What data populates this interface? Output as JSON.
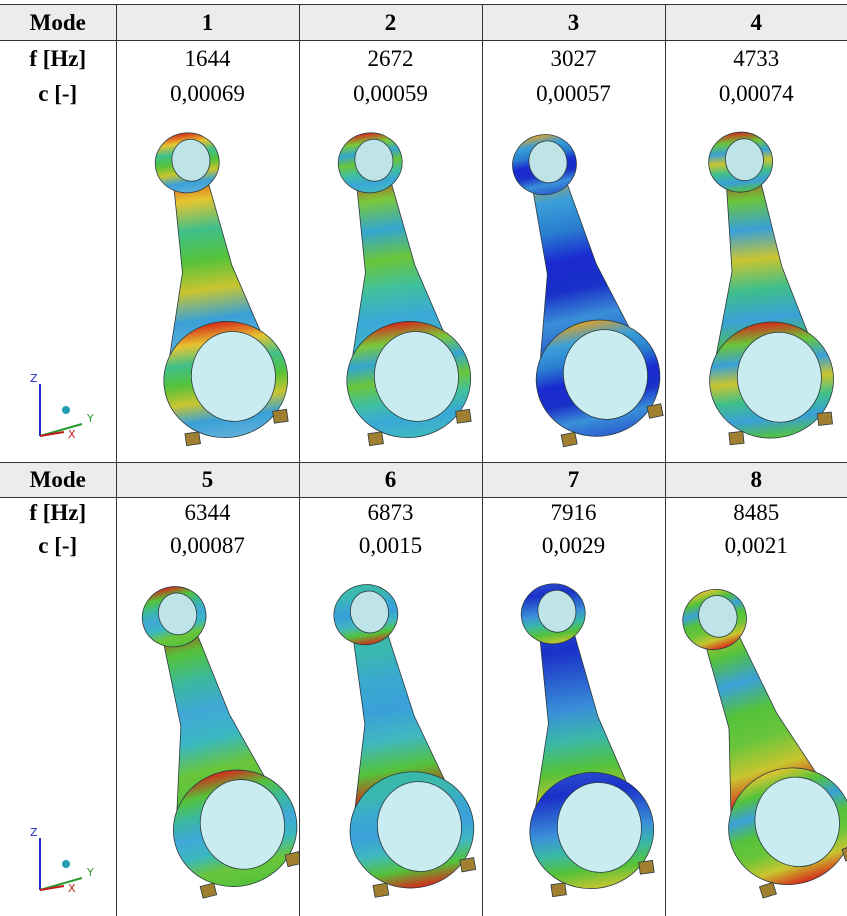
{
  "row_labels": [
    "Mode",
    "f [Hz]",
    "c [-]"
  ],
  "axis_labels": [
    "Z",
    "Y",
    "X"
  ],
  "blocks": [
    {
      "modes": [
        "1",
        "2",
        "3",
        "4"
      ],
      "f": [
        "1644",
        "2672",
        "3027",
        "4733"
      ],
      "c": [
        "0,00069",
        "0,00059",
        "0,00057",
        "0,00074"
      ]
    },
    {
      "modes": [
        "5",
        "6",
        "7",
        "8"
      ],
      "f": [
        "6344",
        "6873",
        "7916",
        "8485"
      ],
      "c": [
        "0,00087",
        "0,0015",
        "0,0029",
        "0,0021"
      ]
    }
  ]
}
